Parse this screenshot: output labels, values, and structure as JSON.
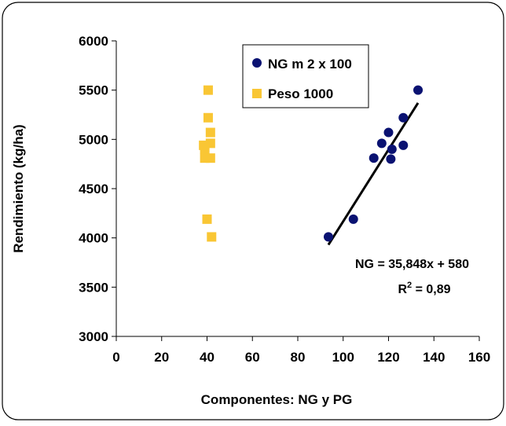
{
  "chart_data": {
    "type": "scatter",
    "title": "",
    "xlabel": "Componentes: NG y PG",
    "ylabel": "Rendimiento (kg/ha)",
    "xlim": [
      0,
      160
    ],
    "ylim": [
      3000,
      6000
    ],
    "x_ticks": [
      0,
      20,
      40,
      60,
      80,
      100,
      120,
      140,
      160
    ],
    "y_ticks": [
      3000,
      3500,
      4000,
      4500,
      5000,
      5500,
      6000
    ],
    "grid": false,
    "legend_position": "top-center",
    "series": [
      {
        "name": "NG m 2 x 100",
        "marker": "circle",
        "color": "#0a1272",
        "points": [
          {
            "x": 93.5,
            "y": 4010
          },
          {
            "x": 104.5,
            "y": 4190
          },
          {
            "x": 113.5,
            "y": 4810
          },
          {
            "x": 117,
            "y": 4960
          },
          {
            "x": 120,
            "y": 5070
          },
          {
            "x": 121.5,
            "y": 4900
          },
          {
            "x": 121,
            "y": 4800
          },
          {
            "x": 126.5,
            "y": 4940
          },
          {
            "x": 126.5,
            "y": 5220
          },
          {
            "x": 133,
            "y": 5500
          }
        ]
      },
      {
        "name": "Peso 1000",
        "marker": "square",
        "color": "#f9c634",
        "points": [
          {
            "x": 40.5,
            "y": 5500
          },
          {
            "x": 40.5,
            "y": 5220
          },
          {
            "x": 41.5,
            "y": 5070
          },
          {
            "x": 41.5,
            "y": 4960
          },
          {
            "x": 38.5,
            "y": 4940
          },
          {
            "x": 39,
            "y": 4900
          },
          {
            "x": 39,
            "y": 4810
          },
          {
            "x": 41.5,
            "y": 4810
          },
          {
            "x": 40,
            "y": 4190
          },
          {
            "x": 42,
            "y": 4010
          }
        ]
      }
    ],
    "trendline": {
      "series": "NG m 2 x 100",
      "color": "#000000",
      "x_range": [
        93.5,
        133
      ],
      "start_y": 3930,
      "end_y": 5370
    },
    "annotations": {
      "equation": "NG = 35,848x + 580",
      "r2_prefix": "R",
      "r2_sup": "2",
      "r2_suffix": " = 0,89"
    }
  }
}
